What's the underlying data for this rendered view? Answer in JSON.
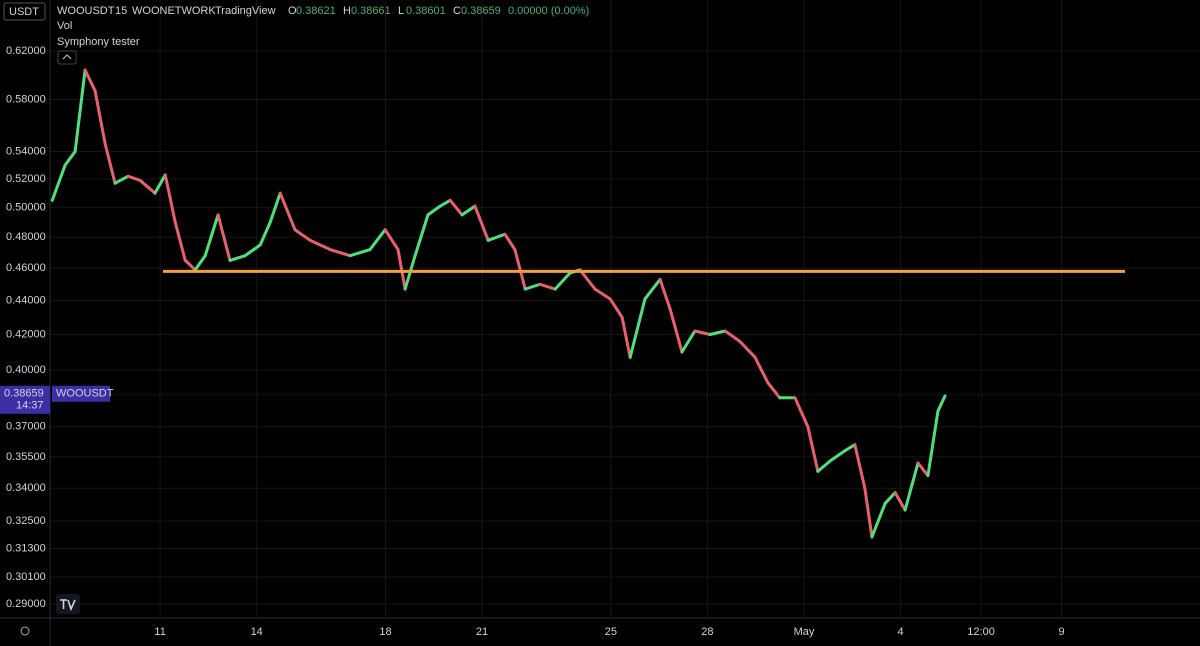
{
  "header": {
    "currency": "USDT",
    "symbol": "WOOUSDT",
    "interval": "15",
    "exchange": "WOONETWORK",
    "source": "TradingView",
    "ohlc": [
      {
        "key": "O",
        "value": "0.38621"
      },
      {
        "key": "H",
        "value": "0.38661"
      },
      {
        "key": "L",
        "value": "0.38601"
      },
      {
        "key": "C",
        "value": "0.38659"
      }
    ],
    "change": "0.00000 (0.00%)",
    "indicators": [
      "Vol",
      "Symphony tester"
    ]
  },
  "chart_data": {
    "type": "line",
    "scale": "log",
    "grid": true,
    "x": [
      7.65,
      8.05,
      8.36,
      8.67,
      8.98,
      9.29,
      9.6,
      10.01,
      10.38,
      10.84,
      11.16,
      11.47,
      11.78,
      12.09,
      12.4,
      12.8,
      13.17,
      13.64,
      14.11,
      14.42,
      14.73,
      15.19,
      15.66,
      16.28,
      16.9,
      17.52,
      17.99,
      18.39,
      18.61,
      18.92,
      19.32,
      19.7,
      20.01,
      20.38,
      20.78,
      21.19,
      21.71,
      22.02,
      22.34,
      22.8,
      23.27,
      23.73,
      24.04,
      24.51,
      24.98,
      25.35,
      25.6,
      26.06,
      26.53,
      26.84,
      27.21,
      27.61,
      28.08,
      28.55,
      29.01,
      29.48,
      29.88,
      30.25,
      30.72,
      31.12,
      31.43,
      31.81,
      32.27,
      32.58,
      32.89,
      33.11,
      33.52,
      33.83,
      34.14,
      34.54,
      34.85,
      35.16,
      35.38
    ],
    "series": [
      {
        "name": "WOOUSDT",
        "values": [
          0.505,
          0.53,
          0.54,
          0.604,
          0.587,
          0.546,
          0.517,
          0.522,
          0.519,
          0.51,
          0.523,
          0.49,
          0.465,
          0.459,
          0.468,
          0.495,
          0.465,
          0.468,
          0.475,
          0.49,
          0.51,
          0.485,
          0.478,
          0.472,
          0.468,
          0.472,
          0.485,
          0.472,
          0.447,
          0.468,
          0.495,
          0.501,
          0.505,
          0.495,
          0.501,
          0.478,
          0.482,
          0.472,
          0.447,
          0.45,
          0.447,
          0.457,
          0.459,
          0.447,
          0.441,
          0.43,
          0.407,
          0.441,
          0.453,
          0.435,
          0.41,
          0.422,
          0.42,
          0.422,
          0.416,
          0.407,
          0.393,
          0.385,
          0.385,
          0.37,
          0.348,
          0.353,
          0.358,
          0.361,
          0.34,
          0.318,
          0.333,
          0.338,
          0.33,
          0.352,
          0.346,
          0.378,
          0.386
        ]
      }
    ],
    "up_color": "#4fe07a",
    "down_color": "#e8606a",
    "xlim": [
      7.58,
      43.3
    ],
    "ylim": [
      0.2845,
      0.665
    ],
    "xticks": [
      11,
      14,
      18,
      21,
      25,
      28,
      {
        "value": 31,
        "label": "May"
      },
      {
        "value": 34,
        "label": "4"
      },
      {
        "value": 36.5,
        "label": "12:00"
      },
      {
        "value": 39,
        "label": "9"
      }
    ],
    "yticks": [
      {
        "value": 0.62,
        "label": "0.62000"
      },
      {
        "value": 0.58,
        "label": "0.58000"
      },
      {
        "value": 0.54,
        "label": "0.54000"
      },
      {
        "value": 0.52,
        "label": "0.52000"
      },
      {
        "value": 0.5,
        "label": "0.50000"
      },
      {
        "value": 0.48,
        "label": "0.48000"
      },
      {
        "value": 0.46,
        "label": "0.46000"
      },
      {
        "value": 0.44,
        "label": "0.44000"
      },
      {
        "value": 0.42,
        "label": "0.42000"
      },
      {
        "value": 0.4,
        "label": "0.40000"
      },
      {
        "value": 0.37,
        "label": "0.37000"
      },
      {
        "value": 0.355,
        "label": "0.35500"
      },
      {
        "value": 0.34,
        "label": "0.34000"
      },
      {
        "value": 0.325,
        "label": "0.32500"
      },
      {
        "value": 0.313,
        "label": "0.31300"
      },
      {
        "value": 0.301,
        "label": "0.30100"
      },
      {
        "value": 0.29,
        "label": "0.29000"
      }
    ],
    "hline": {
      "value": 0.458,
      "x": [
        11.09,
        40.97
      ],
      "color": "#f5a03a"
    },
    "last_price": {
      "value": 0.38659,
      "label": "0.38659",
      "countdown": "14:37",
      "color": "#3b2fa6"
    }
  }
}
